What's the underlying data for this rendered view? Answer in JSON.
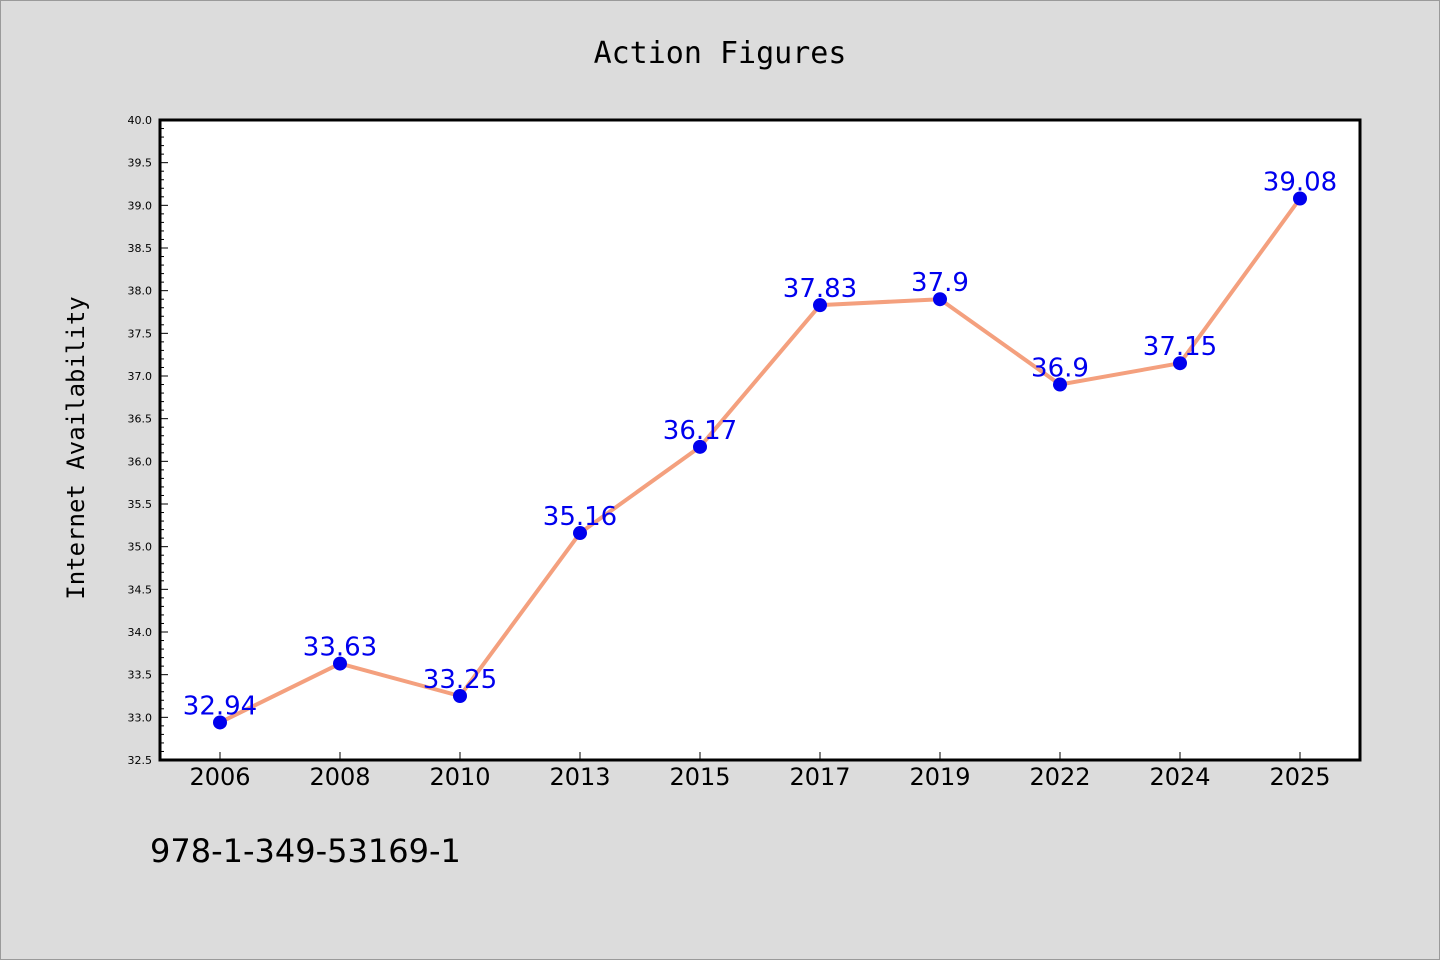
{
  "chart_data": {
    "type": "line",
    "title": "Action Figures",
    "xlabel": "",
    "ylabel": "Internet Availability",
    "categories": [
      "2006",
      "2008",
      "2010",
      "2013",
      "2015",
      "2017",
      "2019",
      "2022",
      "2024",
      "2025"
    ],
    "values": [
      32.94,
      33.63,
      33.25,
      35.16,
      36.17,
      37.83,
      37.9,
      36.9,
      37.15,
      39.08
    ],
    "data_labels": [
      "32.94",
      "33.63",
      "33.25",
      "35.16",
      "36.17",
      "37.83",
      "37.9",
      "36.9",
      "37.15",
      "39.08"
    ],
    "ylim": [
      32.5,
      40.0
    ],
    "y_ticks": [
      "32.5",
      "33.0",
      "33.5",
      "34.0",
      "34.5",
      "35.0",
      "35.5",
      "36.0",
      "36.5",
      "37.0",
      "37.5",
      "38.0",
      "38.5",
      "39.0",
      "39.5",
      "40.0"
    ],
    "grid": false,
    "legend": "none",
    "colors": {
      "line": "#f4a07e",
      "marker": "#0000ee",
      "label": "#0000ee",
      "plot_bg": "#ffffff",
      "page_bg": "#dcdcdc"
    }
  },
  "footnote": "978-1-349-53169-1"
}
